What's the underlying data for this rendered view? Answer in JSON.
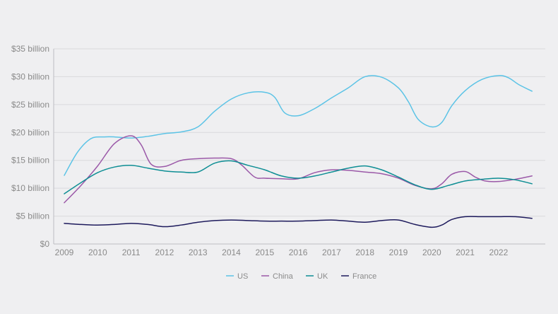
{
  "colors": {
    "background": "#efeff1",
    "grid": "#d9d9dc",
    "axis": "#bdbdc2",
    "text": "#8a8a8a"
  },
  "chart_data": {
    "type": "line",
    "title": "",
    "xlabel": "",
    "ylabel": "",
    "x": [
      2009,
      2010,
      2011,
      2012,
      2013,
      2014,
      2015,
      2016,
      2017,
      2018,
      2019,
      2020,
      2021,
      2022,
      2023
    ],
    "x_tick_labels": [
      "2009",
      "2010",
      "2011",
      "2012",
      "2013",
      "2014",
      "2015",
      "2016",
      "2017",
      "2018",
      "2019",
      "2020",
      "2021",
      "2022"
    ],
    "y_ticks": [
      0,
      5,
      10,
      15,
      20,
      25,
      30,
      35
    ],
    "y_tick_labels": [
      "$0",
      "$5 billion",
      "$10 billion",
      "$15 billion",
      "$20 billion",
      "$25 billion",
      "$30 billion",
      "$35 billion"
    ],
    "ylim": [
      0,
      35
    ],
    "xlim": [
      2009,
      2023.2
    ],
    "grid": true,
    "legend_position": "bottom",
    "series": [
      {
        "name": "US",
        "color": "#5bc3e6",
        "points": [
          [
            2009,
            12.3
          ],
          [
            2009.4,
            16.5
          ],
          [
            2009.8,
            18.9
          ],
          [
            2010.2,
            19.2
          ],
          [
            2010.5,
            19.2
          ],
          [
            2011,
            19.0
          ],
          [
            2011.5,
            19.3
          ],
          [
            2012,
            19.8
          ],
          [
            2012.5,
            20.1
          ],
          [
            2013,
            21.0
          ],
          [
            2013.5,
            23.8
          ],
          [
            2014,
            26.0
          ],
          [
            2014.5,
            27.1
          ],
          [
            2015,
            27.2
          ],
          [
            2015.3,
            26.3
          ],
          [
            2015.6,
            23.5
          ],
          [
            2016,
            23.0
          ],
          [
            2016.5,
            24.3
          ],
          [
            2017,
            26.2
          ],
          [
            2017.5,
            28.0
          ],
          [
            2018,
            30.0
          ],
          [
            2018.5,
            29.9
          ],
          [
            2019,
            28.0
          ],
          [
            2019.3,
            25.5
          ],
          [
            2019.6,
            22.3
          ],
          [
            2020,
            21.0
          ],
          [
            2020.3,
            21.8
          ],
          [
            2020.6,
            24.8
          ],
          [
            2021,
            27.5
          ],
          [
            2021.5,
            29.5
          ],
          [
            2022,
            30.2
          ],
          [
            2022.3,
            29.8
          ],
          [
            2022.6,
            28.6
          ],
          [
            2023,
            27.4
          ]
        ]
      },
      {
        "name": "China",
        "color": "#9b59a8",
        "points": [
          [
            2009,
            7.4
          ],
          [
            2009.5,
            10.5
          ],
          [
            2010,
            14.0
          ],
          [
            2010.5,
            18.0
          ],
          [
            2011,
            19.4
          ],
          [
            2011.3,
            17.8
          ],
          [
            2011.6,
            14.3
          ],
          [
            2012,
            13.9
          ],
          [
            2012.5,
            15.0
          ],
          [
            2013,
            15.3
          ],
          [
            2013.5,
            15.4
          ],
          [
            2014,
            15.3
          ],
          [
            2014.3,
            14.2
          ],
          [
            2014.7,
            12.0
          ],
          [
            2015,
            11.8
          ],
          [
            2015.5,
            11.7
          ],
          [
            2016,
            11.7
          ],
          [
            2016.5,
            12.8
          ],
          [
            2017,
            13.3
          ],
          [
            2017.5,
            13.2
          ],
          [
            2018,
            12.9
          ],
          [
            2018.5,
            12.6
          ],
          [
            2019,
            11.8
          ],
          [
            2019.5,
            10.5
          ],
          [
            2020,
            9.9
          ],
          [
            2020.3,
            10.8
          ],
          [
            2020.6,
            12.5
          ],
          [
            2021,
            13.0
          ],
          [
            2021.3,
            12.0
          ],
          [
            2021.6,
            11.3
          ],
          [
            2022,
            11.2
          ],
          [
            2022.5,
            11.6
          ],
          [
            2023,
            12.2
          ]
        ]
      },
      {
        "name": "UK",
        "color": "#0e8e94",
        "points": [
          [
            2009,
            9.0
          ],
          [
            2009.5,
            11.0
          ],
          [
            2010,
            12.8
          ],
          [
            2010.5,
            13.8
          ],
          [
            2011,
            14.1
          ],
          [
            2011.5,
            13.6
          ],
          [
            2012,
            13.1
          ],
          [
            2012.5,
            12.9
          ],
          [
            2013,
            12.9
          ],
          [
            2013.5,
            14.5
          ],
          [
            2014,
            14.9
          ],
          [
            2014.5,
            14.1
          ],
          [
            2015,
            13.3
          ],
          [
            2015.5,
            12.2
          ],
          [
            2016,
            11.8
          ],
          [
            2016.5,
            12.2
          ],
          [
            2017,
            12.9
          ],
          [
            2017.5,
            13.6
          ],
          [
            2018,
            14.0
          ],
          [
            2018.5,
            13.3
          ],
          [
            2019,
            12.0
          ],
          [
            2019.5,
            10.6
          ],
          [
            2020,
            9.8
          ],
          [
            2020.5,
            10.5
          ],
          [
            2021,
            11.3
          ],
          [
            2021.5,
            11.6
          ],
          [
            2022,
            11.8
          ],
          [
            2022.5,
            11.5
          ],
          [
            2023,
            10.8
          ]
        ]
      },
      {
        "name": "France",
        "color": "#1d1a5c",
        "points": [
          [
            2009,
            3.7
          ],
          [
            2009.5,
            3.5
          ],
          [
            2010,
            3.4
          ],
          [
            2010.5,
            3.5
          ],
          [
            2011,
            3.7
          ],
          [
            2011.5,
            3.5
          ],
          [
            2012,
            3.1
          ],
          [
            2012.5,
            3.4
          ],
          [
            2013,
            3.9
          ],
          [
            2013.5,
            4.2
          ],
          [
            2014,
            4.3
          ],
          [
            2014.5,
            4.2
          ],
          [
            2015,
            4.1
          ],
          [
            2015.5,
            4.1
          ],
          [
            2016,
            4.1
          ],
          [
            2016.5,
            4.2
          ],
          [
            2017,
            4.3
          ],
          [
            2017.5,
            4.1
          ],
          [
            2018,
            3.9
          ],
          [
            2018.5,
            4.2
          ],
          [
            2019,
            4.3
          ],
          [
            2019.5,
            3.5
          ],
          [
            2020,
            3.0
          ],
          [
            2020.3,
            3.4
          ],
          [
            2020.6,
            4.4
          ],
          [
            2021,
            4.9
          ],
          [
            2021.5,
            4.9
          ],
          [
            2022,
            4.9
          ],
          [
            2022.5,
            4.9
          ],
          [
            2023,
            4.6
          ]
        ]
      }
    ]
  }
}
